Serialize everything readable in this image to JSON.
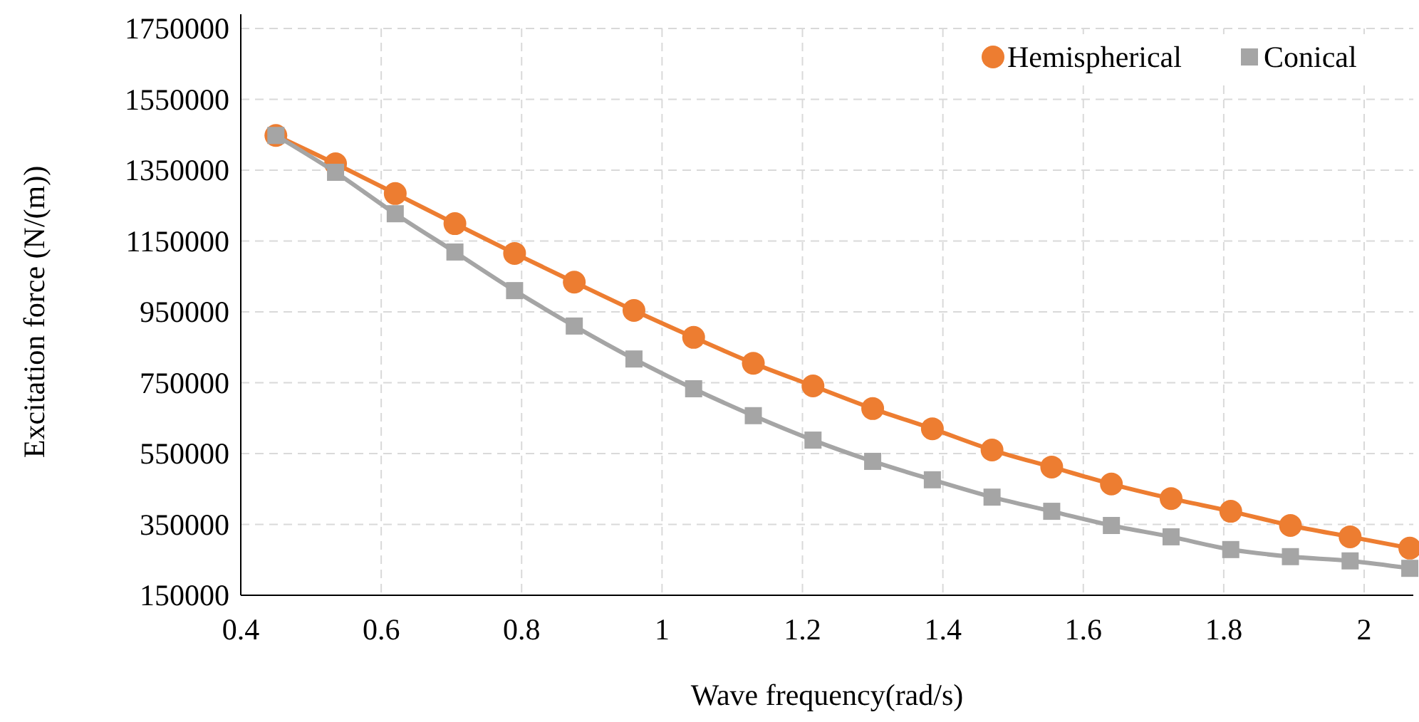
{
  "chart_data": {
    "type": "line",
    "xlabel": "Wave frequency(rad/s)",
    "ylabel": "Excitation force (N/(m))",
    "x": [
      0.45,
      0.535,
      0.62,
      0.705,
      0.79,
      0.875,
      0.96,
      1.045,
      1.13,
      1.215,
      1.3,
      1.385,
      1.47,
      1.555,
      1.64,
      1.725,
      1.81,
      1.895,
      1.98,
      2.065
    ],
    "series": [
      {
        "name": "Hemispherical",
        "color": "#ed7d31",
        "marker": "circle",
        "values": [
          1448000,
          1368000,
          1284000,
          1199000,
          1115000,
          1034000,
          954000,
          878000,
          805000,
          741000,
          677000,
          620000,
          560000,
          512000,
          464000,
          423000,
          387000,
          347000,
          315000,
          283000
        ]
      },
      {
        "name": "Conical",
        "color": "#a5a5a5",
        "marker": "square",
        "values": [
          1448000,
          1344000,
          1227000,
          1119000,
          1010000,
          910000,
          817000,
          733000,
          657000,
          588000,
          528000,
          476000,
          427000,
          387000,
          347000,
          315000,
          279000,
          259000,
          247000,
          226000
        ]
      }
    ],
    "xlim": [
      0.4,
      2.07
    ],
    "xticks": [
      {
        "value": 0.4,
        "label": "0.4"
      },
      {
        "value": 0.6,
        "label": "0.6"
      },
      {
        "value": 0.8,
        "label": "0.8"
      },
      1,
      {
        "value": 1.2,
        "label": "1.2"
      },
      {
        "value": 1.4,
        "label": "1.4"
      },
      {
        "value": 1.6,
        "label": "1.6"
      },
      {
        "value": 1.8,
        "label": "1.8"
      },
      2
    ],
    "ylim": [
      150000,
      1750000
    ],
    "yticks": [
      150000,
      350000,
      550000,
      750000,
      950000,
      1150000,
      1350000,
      1550000,
      1750000
    ],
    "grid": true,
    "legend": "top right",
    "line_style": "solid"
  }
}
